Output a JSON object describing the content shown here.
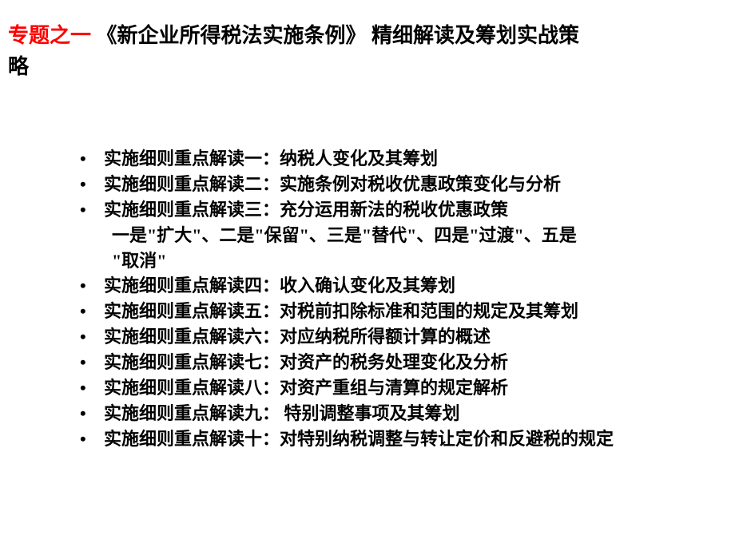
{
  "title": {
    "highlight": "专题之一",
    "black_part1": " 《新企业所得税法实施条例》 精细解读及筹划实战策",
    "black_part2": "略"
  },
  "items": [
    "实施细则重点解读一：纳税人变化及其筹划",
    "实施细则重点解读二：实施条例对税收优惠政策变化与分析",
    "实施细则重点解读三：充分运用新法的税收优惠政策"
  ],
  "sub_line1": "  一是\"扩大\"、二是\"保留\"、三是\"替代\"、四是\"过渡\"、五是",
  "sub_line2": "\"取消\"",
  "items2": [
    "实施细则重点解读四：收入确认变化及其筹划",
    "实施细则重点解读五：对税前扣除标准和范围的规定及其筹划",
    "实施细则重点解读六：对应纳税所得额计算的概述",
    "实施细则重点解读七：对资产的税务处理变化及分析",
    "实施细则重点解读八：对资产重组与清算的规定解析",
    "实施细则重点解读九： 特别调整事项及其筹划",
    "实施细则重点解读十：对特别纳税调整与转让定价和反避税的规定"
  ]
}
